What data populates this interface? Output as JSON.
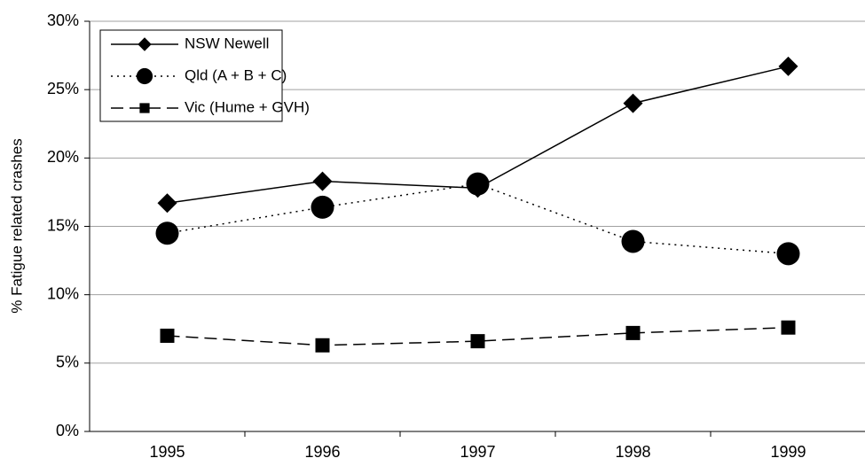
{
  "chart_data": {
    "type": "line",
    "y_label": "% Fatigue related crashes",
    "categories": [
      "1995",
      "1996",
      "1997",
      "1998",
      "1999"
    ],
    "series": [
      {
        "name": "NSW Newell",
        "color": "#000000",
        "marker": "diamond",
        "line_style": "solid",
        "values": [
          16.7,
          18.3,
          17.8,
          24.0,
          26.7
        ]
      },
      {
        "name": "Qld (A + B + C)",
        "color": "#000000",
        "marker": "circle",
        "line_style": "dotted",
        "values": [
          14.5,
          16.4,
          18.1,
          13.9,
          13.0
        ]
      },
      {
        "name": "Vic (Hume + GVH)",
        "color": "#000000",
        "marker": "square",
        "line_style": "dashed",
        "values": [
          7.0,
          6.3,
          6.6,
          7.2,
          7.6
        ]
      }
    ],
    "ylim": [
      0,
      30
    ],
    "yticks": [
      {
        "value": 0,
        "label": "0%"
      },
      {
        "value": 5,
        "label": "5%"
      },
      {
        "value": 10,
        "label": "10%"
      },
      {
        "value": 15,
        "label": "15%"
      },
      {
        "value": 20,
        "label": "20%"
      },
      {
        "value": 25,
        "label": "25%"
      },
      {
        "value": 30,
        "label": "30%"
      }
    ],
    "grid": true,
    "legend": "upper-left"
  }
}
